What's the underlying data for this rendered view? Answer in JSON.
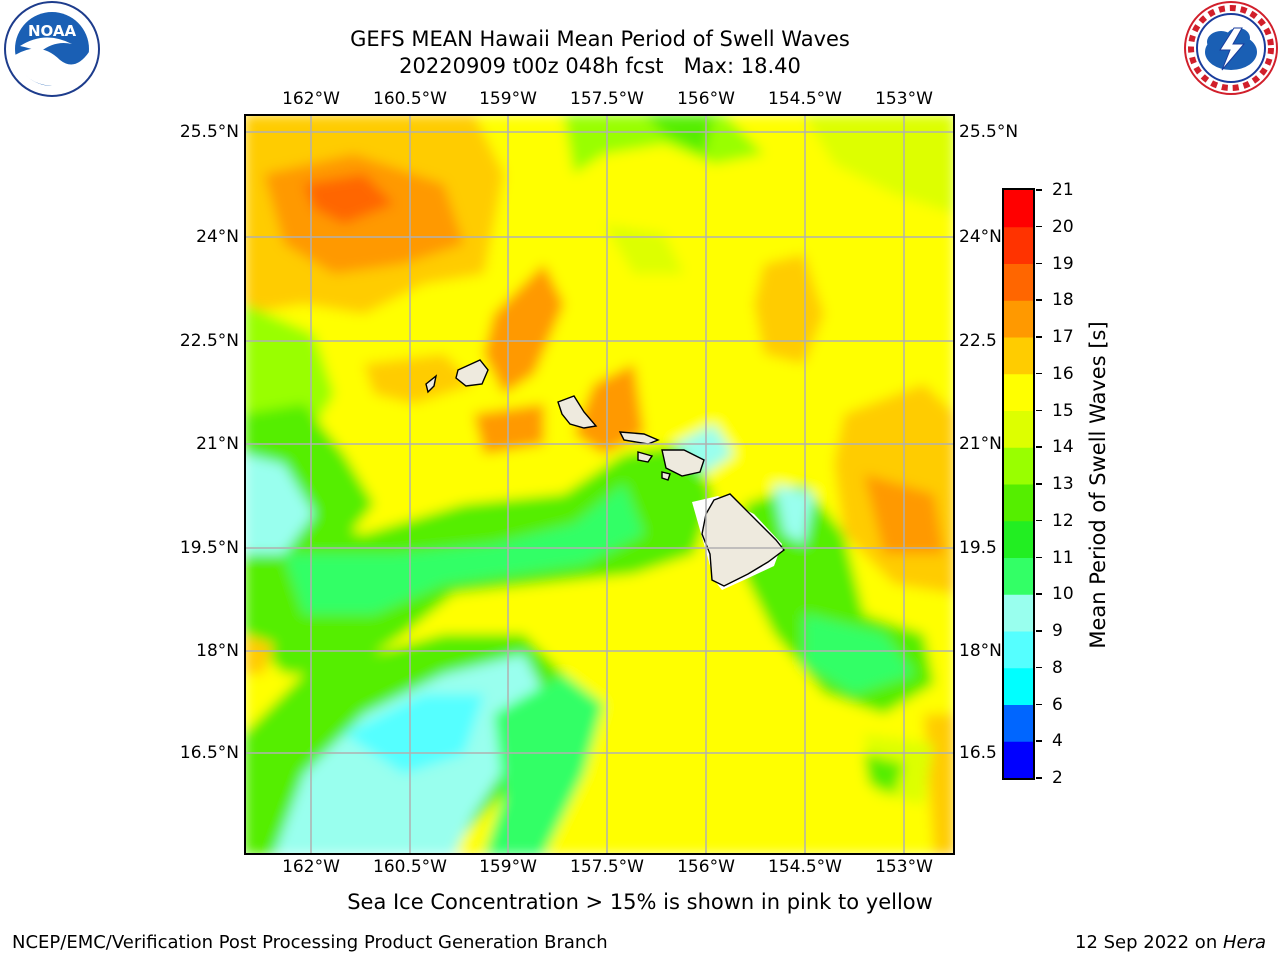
{
  "title": {
    "line1": "GEFS MEAN Hawaii Mean Period of Swell Waves",
    "line2": "20220909 t00z 048h fcst   Max: 18.40"
  },
  "logos": {
    "left": {
      "text": "NOAA",
      "ring_text": "NATIONAL OCEANIC AND ATMOSPHERIC ADMINISTRATION · U.S. DEPARTMENT OF COMMERCE"
    },
    "right": {
      "ring_text": "NATIONAL WEATHER SERVICE"
    }
  },
  "map": {
    "lon_ticks": [
      "162°W",
      "160.5°W",
      "159°W",
      "157.5°W",
      "156°W",
      "154.5°W",
      "153°W"
    ],
    "lat_ticks": [
      "25.5°N",
      "24°N",
      "22.5°N",
      "21°N",
      "19.5°N",
      "18°N",
      "16.5°N"
    ],
    "lat_ticks_right": [
      "25.5°N",
      "24°N",
      "22.5",
      "21°N",
      "19.5",
      "18°N",
      "16.5"
    ],
    "grid": true,
    "colors": {
      "land": "#eeeade",
      "coast": "#000000",
      "grid": "#b0b0b0",
      "frame": "#000000"
    }
  },
  "colorbar": {
    "label": "Mean Period of Swell Waves [s]",
    "ticks": [
      "2",
      "4",
      "6",
      "8",
      "9",
      "10",
      "11",
      "12",
      "13",
      "14",
      "15",
      "16",
      "17",
      "18",
      "19",
      "20",
      "21"
    ],
    "colors": [
      "#0000ff",
      "#0066ff",
      "#00ffff",
      "#55ffff",
      "#99ffee",
      "#33ff66",
      "#22ee22",
      "#55ee00",
      "#99ff00",
      "#ddff00",
      "#ffff00",
      "#ffcc00",
      "#ff9900",
      "#ff6600",
      "#ff3300",
      "#ff0000"
    ]
  },
  "footnote": "Sea Ice Concentration > 15% is shown in pink to yellow",
  "credits": {
    "left": "NCEP/EMC/Verification Post Processing Product Generation Branch",
    "right_date": "12 Sep 2022 on ",
    "right_host": "Hera"
  }
}
